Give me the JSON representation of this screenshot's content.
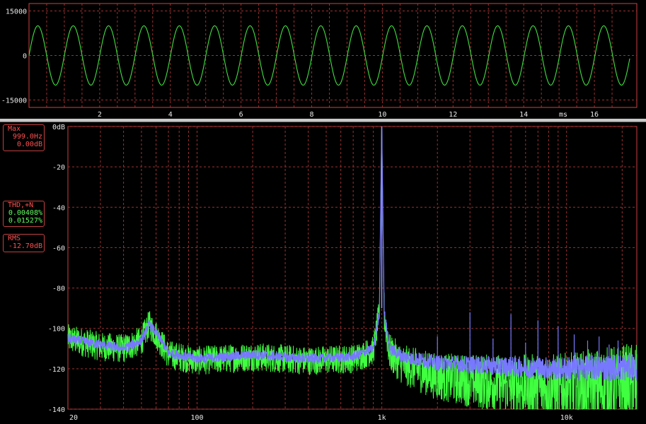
{
  "waveform": {
    "y_ticks": [
      {
        "label": "15000",
        "value": 15000
      },
      {
        "label": "0",
        "value": 0
      },
      {
        "label": "-15000",
        "value": -15000
      }
    ],
    "x_ticks": [
      "2",
      "4",
      "6",
      "8",
      "10",
      "12",
      "14",
      "16"
    ],
    "x_unit": "ms"
  },
  "spectrum": {
    "y_ticks": [
      "0dB",
      "-20",
      "-40",
      "-60",
      "-80",
      "-100",
      "-120",
      "-140"
    ],
    "x_ticks": [
      "20",
      "100",
      "1k",
      "10k"
    ]
  },
  "readouts": {
    "max": {
      "title": "Max",
      "freq": "999.0Hz",
      "level": "0.00dB"
    },
    "thd": {
      "title": "THD,+N",
      "thd": "0.00408%",
      "thdn": "0.01527%"
    },
    "rms": {
      "title": "RMS",
      "value": "-12.70dB"
    }
  },
  "chart_data": [
    {
      "type": "line",
      "x": [
        0,
        17
      ],
      "xlim": [
        0,
        17.2
      ],
      "ylim": [
        -17500,
        17500
      ],
      "grid": true,
      "series": [
        {
          "frequency_khz": 0.999,
          "amplitude": 10000
        }
      ]
    },
    {
      "type": "line",
      "x_scale": "log",
      "xlim": [
        20,
        24000
      ],
      "ylim": [
        -140,
        0
      ],
      "grid": true,
      "peak": {
        "x": 999,
        "y": 0
      },
      "series": [
        {
          "color": "#7878ff",
          "x": [
            20,
            30,
            40,
            50,
            55,
            60,
            70,
            100,
            200,
            400,
            700,
            900,
            970,
            999,
            1030,
            1100,
            1300,
            2000,
            5000,
            10000,
            24000
          ],
          "y": [
            -105,
            -108,
            -110,
            -106,
            -98,
            -102,
            -112,
            -115,
            -113,
            -115,
            -114,
            -110,
            -92,
            0,
            -92,
            -110,
            -114,
            -117,
            -119,
            -120,
            -119
          ]
        },
        {
          "color": "#40ff40",
          "x": [
            20,
            30,
            40,
            50,
            55,
            60,
            70,
            100,
            200,
            400,
            700,
            900,
            970,
            999,
            1030,
            1100,
            1300,
            2000,
            5000,
            10000,
            24000
          ],
          "y": [
            -105,
            -109,
            -110,
            -106,
            -98,
            -103,
            -113,
            -116,
            -114,
            -116,
            -115,
            -111,
            -92,
            0,
            -93,
            -112,
            -118,
            -124,
            -128,
            -130,
            -128
          ]
        }
      ],
      "harmonics": [
        {
          "x": 2000,
          "y": -104
        },
        {
          "x": 3000,
          "y": -92
        },
        {
          "x": 4000,
          "y": -105
        },
        {
          "x": 5000,
          "y": -93
        },
        {
          "x": 6000,
          "y": -107
        },
        {
          "x": 7000,
          "y": -96
        },
        {
          "x": 9000,
          "y": -99
        },
        {
          "x": 11000,
          "y": -103
        },
        {
          "x": 13000,
          "y": -106
        },
        {
          "x": 15000,
          "y": -104
        },
        {
          "x": 17000,
          "y": -108
        },
        {
          "x": 19000,
          "y": -106
        }
      ]
    }
  ]
}
